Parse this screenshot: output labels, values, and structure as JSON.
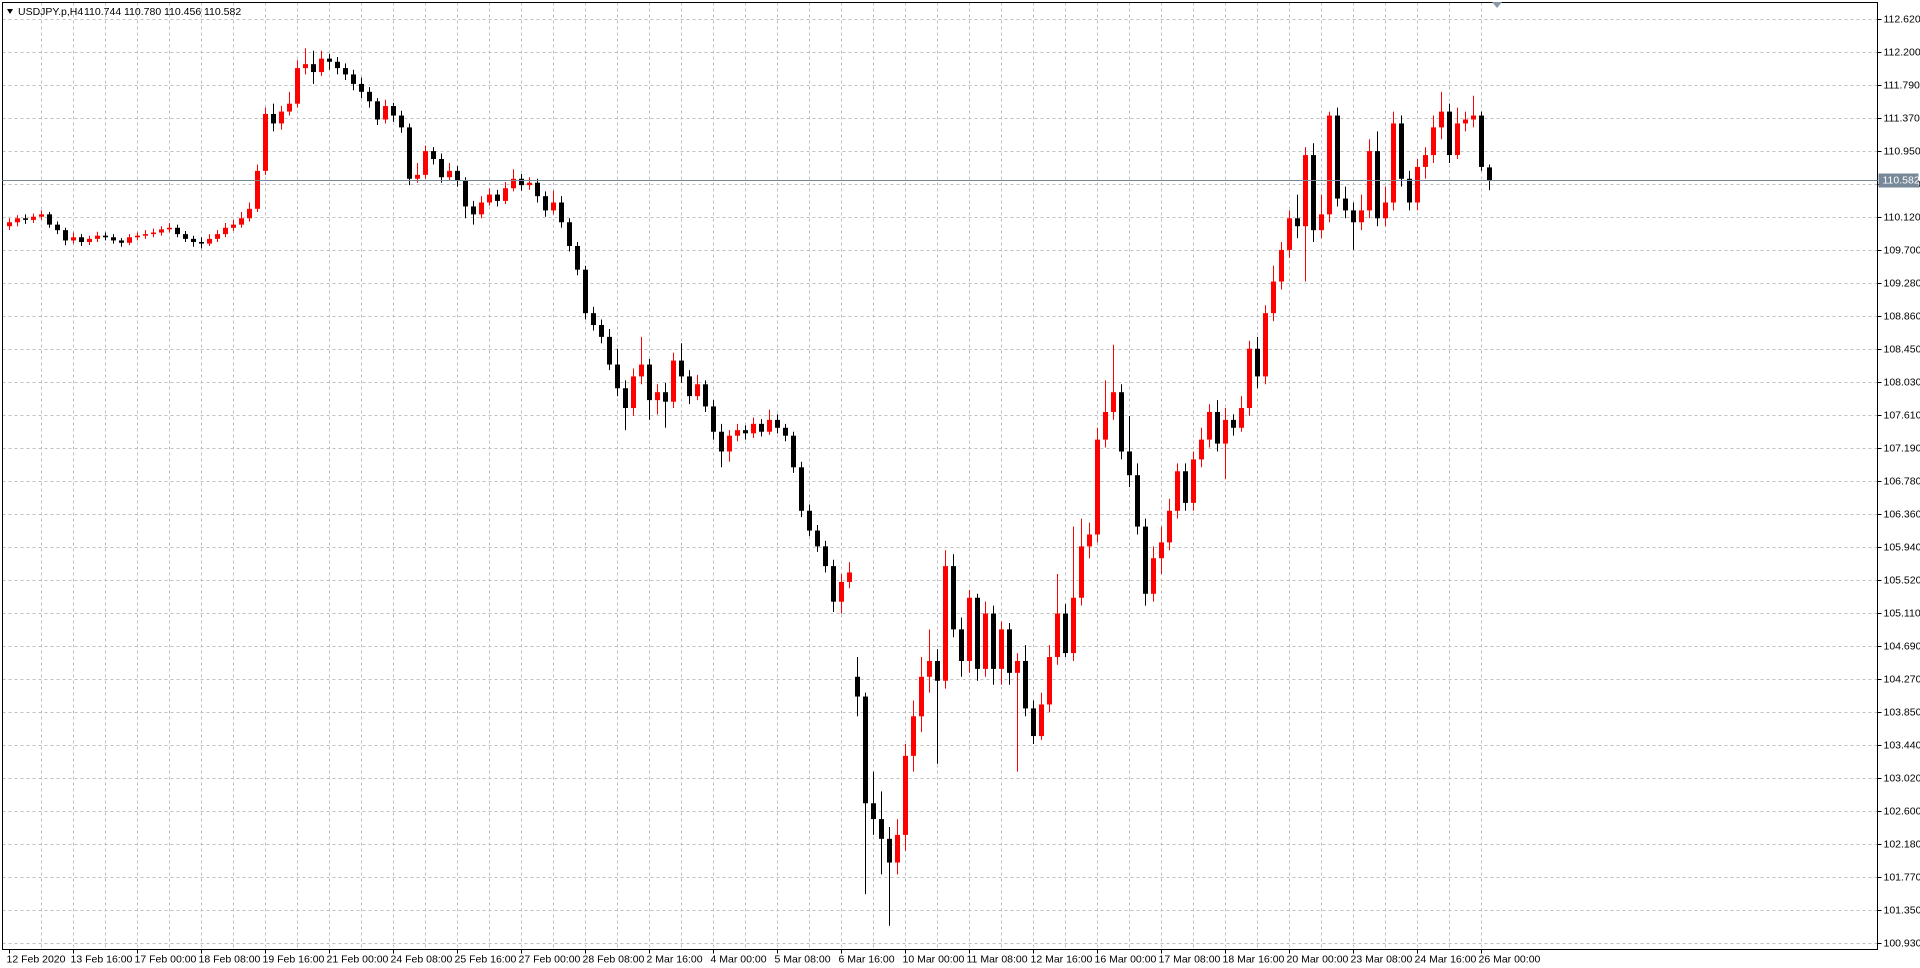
{
  "chart_data": {
    "type": "candlestick",
    "symbol": "USDJPY.p,H4",
    "last_bar_labels": [
      "110.744",
      "110.780",
      "110.456",
      "110.582"
    ],
    "bull_color": "#ff0000",
    "bear_color": "#000000",
    "grid": true,
    "ylim": [
      100.85,
      112.83
    ],
    "yticks": [
      {
        "value": 112.62,
        "label": "112.620"
      },
      {
        "value": 112.2,
        "label": "112.200"
      },
      {
        "value": 111.79,
        "label": "111.790"
      },
      {
        "value": 111.37,
        "label": "111.370"
      },
      {
        "value": 110.95,
        "label": "110.950"
      },
      {
        "value": 110.53,
        "label": "110.530"
      },
      {
        "value": 110.12,
        "label": "110.120"
      },
      {
        "value": 109.7,
        "label": "109.700"
      },
      {
        "value": 109.28,
        "label": "109.280"
      },
      {
        "value": 108.86,
        "label": "108.860"
      },
      {
        "value": 108.45,
        "label": "108.450"
      },
      {
        "value": 108.03,
        "label": "108.030"
      },
      {
        "value": 107.61,
        "label": "107.610"
      },
      {
        "value": 107.19,
        "label": "107.190"
      },
      {
        "value": 106.78,
        "label": "106.780"
      },
      {
        "value": 106.36,
        "label": "106.360"
      },
      {
        "value": 105.94,
        "label": "105.940"
      },
      {
        "value": 105.52,
        "label": "105.520"
      },
      {
        "value": 105.11,
        "label": "105.110"
      },
      {
        "value": 104.69,
        "label": "104.690"
      },
      {
        "value": 104.27,
        "label": "104.270"
      },
      {
        "value": 103.85,
        "label": "103.850"
      },
      {
        "value": 103.44,
        "label": "103.440"
      },
      {
        "value": 103.02,
        "label": "103.020"
      },
      {
        "value": 102.6,
        "label": "102.600"
      },
      {
        "value": 102.18,
        "label": "102.180"
      },
      {
        "value": 101.77,
        "label": "101.770"
      },
      {
        "value": 101.35,
        "label": "101.350"
      },
      {
        "value": 100.93,
        "label": "100.930"
      }
    ],
    "bid": {
      "value": 110.582,
      "label": "110.582"
    },
    "bid_color": "#778899",
    "categories": [
      "12 Feb 2020",
      null,
      null,
      null,
      null,
      null,
      null,
      null,
      "13 Feb 16:00",
      null,
      null,
      null,
      null,
      null,
      null,
      null,
      "17 Feb 00:00",
      null,
      null,
      null,
      null,
      null,
      null,
      null,
      "18 Feb 08:00",
      null,
      null,
      null,
      null,
      null,
      null,
      null,
      "19 Feb 16:00",
      null,
      null,
      null,
      null,
      null,
      null,
      null,
      "21 Feb 00:00",
      null,
      null,
      null,
      null,
      null,
      null,
      null,
      "24 Feb 08:00",
      null,
      null,
      null,
      null,
      null,
      null,
      null,
      "25 Feb 16:00",
      null,
      null,
      null,
      null,
      null,
      null,
      null,
      "27 Feb 00:00",
      null,
      null,
      null,
      null,
      null,
      null,
      null,
      "28 Feb 08:00",
      null,
      null,
      null,
      null,
      null,
      null,
      null,
      "2 Mar 16:00",
      null,
      null,
      null,
      null,
      null,
      null,
      null,
      "4 Mar 00:00",
      null,
      null,
      null,
      null,
      null,
      null,
      null,
      "5 Mar 08:00",
      null,
      null,
      null,
      null,
      null,
      null,
      null,
      "6 Mar 16:00",
      null,
      null,
      null,
      null,
      null,
      null,
      null,
      "10 Mar 00:00",
      null,
      null,
      null,
      null,
      null,
      null,
      null,
      "11 Mar 08:00",
      null,
      null,
      null,
      null,
      null,
      null,
      null,
      "12 Mar 16:00",
      null,
      null,
      null,
      null,
      null,
      null,
      null,
      "16 Mar 00:00",
      null,
      null,
      null,
      null,
      null,
      null,
      null,
      "17 Mar 08:00",
      null,
      null,
      null,
      null,
      null,
      null,
      null,
      "18 Mar 16:00",
      null,
      null,
      null,
      null,
      null,
      null,
      null,
      "20 Mar 00:00",
      null,
      null,
      null,
      null,
      null,
      null,
      null,
      "23 Mar 08:00",
      null,
      null,
      null,
      null,
      null,
      null,
      null,
      "24 Mar 16:00",
      null,
      null,
      null,
      null,
      null,
      null,
      null,
      "26 Mar 00:00",
      null
    ],
    "ohlc": [
      [
        110.0,
        110.1,
        109.95,
        110.05
      ],
      [
        110.05,
        110.14,
        110.0,
        110.1
      ],
      [
        110.1,
        110.15,
        110.03,
        110.08
      ],
      [
        110.08,
        110.16,
        110.04,
        110.12
      ],
      [
        110.12,
        110.2,
        110.08,
        110.15
      ],
      [
        110.15,
        110.18,
        109.98,
        110.02
      ],
      [
        110.02,
        110.06,
        109.9,
        109.95
      ],
      [
        109.95,
        109.98,
        109.76,
        109.82
      ],
      [
        109.82,
        109.92,
        109.78,
        109.86
      ],
      [
        109.86,
        109.9,
        109.75,
        109.8
      ],
      [
        109.8,
        109.88,
        109.76,
        109.84
      ],
      [
        109.84,
        109.93,
        109.8,
        109.88
      ],
      [
        109.88,
        109.92,
        109.82,
        109.86
      ],
      [
        109.86,
        109.9,
        109.78,
        109.82
      ],
      [
        109.82,
        109.85,
        109.74,
        109.79
      ],
      [
        109.79,
        109.9,
        109.76,
        109.86
      ],
      [
        109.86,
        109.92,
        109.82,
        109.88
      ],
      [
        109.88,
        109.95,
        109.84,
        109.9
      ],
      [
        109.9,
        109.97,
        109.86,
        109.92
      ],
      [
        109.92,
        110.0,
        109.88,
        109.96
      ],
      [
        109.96,
        110.04,
        109.92,
        109.98
      ],
      [
        109.98,
        110.02,
        109.86,
        109.9
      ],
      [
        109.9,
        109.94,
        109.8,
        109.84
      ],
      [
        109.84,
        109.88,
        109.74,
        109.8
      ],
      [
        109.8,
        109.86,
        109.72,
        109.78
      ],
      [
        109.78,
        109.9,
        109.75,
        109.84
      ],
      [
        109.84,
        109.95,
        109.8,
        109.9
      ],
      [
        109.9,
        110.04,
        109.86,
        109.98
      ],
      [
        109.98,
        110.08,
        109.94,
        110.02
      ],
      [
        110.02,
        110.18,
        109.98,
        110.1
      ],
      [
        110.1,
        110.3,
        110.06,
        110.22
      ],
      [
        110.22,
        110.78,
        110.18,
        110.7
      ],
      [
        110.7,
        111.5,
        110.65,
        111.42
      ],
      [
        111.42,
        111.55,
        111.2,
        111.3
      ],
      [
        111.3,
        111.52,
        111.22,
        111.45
      ],
      [
        111.45,
        111.7,
        111.4,
        111.55
      ],
      [
        111.55,
        112.1,
        111.5,
        112.0
      ],
      [
        112.0,
        112.25,
        111.92,
        112.05
      ],
      [
        112.05,
        112.22,
        111.8,
        111.95
      ],
      [
        111.95,
        112.22,
        111.9,
        112.12
      ],
      [
        112.12,
        112.18,
        111.98,
        112.08
      ],
      [
        112.08,
        112.14,
        111.92,
        112.0
      ],
      [
        112.0,
        112.06,
        111.85,
        111.92
      ],
      [
        111.92,
        111.98,
        111.72,
        111.8
      ],
      [
        111.8,
        111.88,
        111.62,
        111.7
      ],
      [
        111.7,
        111.76,
        111.5,
        111.58
      ],
      [
        111.58,
        111.62,
        111.28,
        111.35
      ],
      [
        111.35,
        111.6,
        111.3,
        111.52
      ],
      [
        111.52,
        111.56,
        111.32,
        111.4
      ],
      [
        111.4,
        111.46,
        111.18,
        111.25
      ],
      [
        111.25,
        111.3,
        110.52,
        110.6
      ],
      [
        110.6,
        110.8,
        110.55,
        110.65
      ],
      [
        110.65,
        111.02,
        110.6,
        110.95
      ],
      [
        110.95,
        111.0,
        110.78,
        110.85
      ],
      [
        110.85,
        110.92,
        110.55,
        110.62
      ],
      [
        110.62,
        110.8,
        110.58,
        110.7
      ],
      [
        110.7,
        110.76,
        110.5,
        110.58
      ],
      [
        110.58,
        110.62,
        110.1,
        110.25
      ],
      [
        110.25,
        110.32,
        110.02,
        110.15
      ],
      [
        110.15,
        110.38,
        110.1,
        110.3
      ],
      [
        110.3,
        110.48,
        110.26,
        110.4
      ],
      [
        110.4,
        110.46,
        110.25,
        110.32
      ],
      [
        110.32,
        110.56,
        110.28,
        110.48
      ],
      [
        110.48,
        110.72,
        110.44,
        110.6
      ],
      [
        110.6,
        110.66,
        110.45,
        110.52
      ],
      [
        110.52,
        110.62,
        110.46,
        110.55
      ],
      [
        110.55,
        110.6,
        110.3,
        110.38
      ],
      [
        110.38,
        110.44,
        110.12,
        110.2
      ],
      [
        110.2,
        110.45,
        110.15,
        110.3
      ],
      [
        110.3,
        110.38,
        109.98,
        110.05
      ],
      [
        110.05,
        110.1,
        109.68,
        109.75
      ],
      [
        109.75,
        109.8,
        109.38,
        109.45
      ],
      [
        109.45,
        109.5,
        108.82,
        108.9
      ],
      [
        108.9,
        108.98,
        108.68,
        108.75
      ],
      [
        108.75,
        108.82,
        108.52,
        108.6
      ],
      [
        108.6,
        108.7,
        108.18,
        108.25
      ],
      [
        108.25,
        108.45,
        107.85,
        107.95
      ],
      [
        107.95,
        108.05,
        107.42,
        107.7
      ],
      [
        107.7,
        108.2,
        107.6,
        108.1
      ],
      [
        108.1,
        108.6,
        108.0,
        108.25
      ],
      [
        108.25,
        108.32,
        107.55,
        107.8
      ],
      [
        107.8,
        108.0,
        107.62,
        107.9
      ],
      [
        107.9,
        108.02,
        107.45,
        107.78
      ],
      [
        107.78,
        108.4,
        107.7,
        108.3
      ],
      [
        108.3,
        108.52,
        108.02,
        108.1
      ],
      [
        108.1,
        108.18,
        107.75,
        107.85
      ],
      [
        107.85,
        108.12,
        107.8,
        108.0
      ],
      [
        108.0,
        108.05,
        107.65,
        107.72
      ],
      [
        107.72,
        107.8,
        107.3,
        107.4
      ],
      [
        107.4,
        107.5,
        106.95,
        107.15
      ],
      [
        107.15,
        107.42,
        107.02,
        107.35
      ],
      [
        107.35,
        107.5,
        107.28,
        107.42
      ],
      [
        107.42,
        107.48,
        107.3,
        107.38
      ],
      [
        107.38,
        107.58,
        107.32,
        107.5
      ],
      [
        107.5,
        107.56,
        107.34,
        107.4
      ],
      [
        107.4,
        107.68,
        107.36,
        107.55
      ],
      [
        107.55,
        107.62,
        107.38,
        107.45
      ],
      [
        107.45,
        107.5,
        107.28,
        107.35
      ],
      [
        107.35,
        107.4,
        106.88,
        106.95
      ],
      [
        106.95,
        107.02,
        106.32,
        106.4
      ],
      [
        106.4,
        106.48,
        106.08,
        106.15
      ],
      [
        106.15,
        106.22,
        105.88,
        105.95
      ],
      [
        105.95,
        106.02,
        105.62,
        105.7
      ],
      [
        105.7,
        105.78,
        105.12,
        105.25
      ],
      [
        105.25,
        105.6,
        105.1,
        105.5
      ],
      [
        105.5,
        105.75,
        105.42,
        105.62
      ],
      [
        104.3,
        104.55,
        103.8,
        104.05
      ],
      [
        104.05,
        104.1,
        101.55,
        102.7
      ],
      [
        102.7,
        103.1,
        102.3,
        102.5
      ],
      [
        102.5,
        102.85,
        101.8,
        102.25
      ],
      [
        102.25,
        102.4,
        101.15,
        101.95
      ],
      [
        101.95,
        102.5,
        101.8,
        102.3
      ],
      [
        102.3,
        103.45,
        102.1,
        103.3
      ],
      [
        103.3,
        104.0,
        103.1,
        103.8
      ],
      [
        103.8,
        104.55,
        103.6,
        104.3
      ],
      [
        104.3,
        104.9,
        104.1,
        104.5
      ],
      [
        104.5,
        104.65,
        103.2,
        104.25
      ],
      [
        104.25,
        105.9,
        104.15,
        105.7
      ],
      [
        105.7,
        105.85,
        104.8,
        104.9
      ],
      [
        104.9,
        105.05,
        104.3,
        104.5
      ],
      [
        104.5,
        105.4,
        104.35,
        105.3
      ],
      [
        105.3,
        105.35,
        104.25,
        104.4
      ],
      [
        104.4,
        105.25,
        104.3,
        105.1
      ],
      [
        105.1,
        105.2,
        104.2,
        104.4
      ],
      [
        104.4,
        105.0,
        104.2,
        104.9
      ],
      [
        104.9,
        104.98,
        104.2,
        104.35
      ],
      [
        104.35,
        104.6,
        103.1,
        104.5
      ],
      [
        104.5,
        104.7,
        103.8,
        103.9
      ],
      [
        103.9,
        104.0,
        103.45,
        103.55
      ],
      [
        103.55,
        104.1,
        103.5,
        103.95
      ],
      [
        103.95,
        104.7,
        103.85,
        104.55
      ],
      [
        104.55,
        105.6,
        104.45,
        105.1
      ],
      [
        105.1,
        105.22,
        104.55,
        104.6
      ],
      [
        104.6,
        106.2,
        104.5,
        105.3
      ],
      [
        105.3,
        106.3,
        105.2,
        105.95
      ],
      [
        105.95,
        106.25,
        105.8,
        106.1
      ],
      [
        106.1,
        107.45,
        106.0,
        107.3
      ],
      [
        107.3,
        108.05,
        107.2,
        107.65
      ],
      [
        107.65,
        108.5,
        107.55,
        107.9
      ],
      [
        107.9,
        108.0,
        107.05,
        107.15
      ],
      [
        107.15,
        107.6,
        106.7,
        106.85
      ],
      [
        106.85,
        107.0,
        106.1,
        106.2
      ],
      [
        106.2,
        106.3,
        105.2,
        105.35
      ],
      [
        105.35,
        105.95,
        105.25,
        105.8
      ],
      [
        105.8,
        106.2,
        105.6,
        106.0
      ],
      [
        106.0,
        106.55,
        105.9,
        106.4
      ],
      [
        106.4,
        107.0,
        106.3,
        106.9
      ],
      [
        106.9,
        107.0,
        106.4,
        106.5
      ],
      [
        106.5,
        107.15,
        106.4,
        107.05
      ],
      [
        107.05,
        107.45,
        106.95,
        107.3
      ],
      [
        107.3,
        107.75,
        107.2,
        107.65
      ],
      [
        107.65,
        107.8,
        107.15,
        107.25
      ],
      [
        107.25,
        107.7,
        106.8,
        107.55
      ],
      [
        107.55,
        107.62,
        107.35,
        107.45
      ],
      [
        107.45,
        107.85,
        107.4,
        107.7
      ],
      [
        107.7,
        108.55,
        107.6,
        108.45
      ],
      [
        108.45,
        108.6,
        107.95,
        108.1
      ],
      [
        108.1,
        109.0,
        108.0,
        108.9
      ],
      [
        108.9,
        109.5,
        108.8,
        109.3
      ],
      [
        109.3,
        109.8,
        109.2,
        109.7
      ],
      [
        109.7,
        110.2,
        109.6,
        110.1
      ],
      [
        110.1,
        110.4,
        109.85,
        110.0
      ],
      [
        110.0,
        111.0,
        109.3,
        110.9
      ],
      [
        110.9,
        111.05,
        109.8,
        109.95
      ],
      [
        109.95,
        110.4,
        109.85,
        110.15
      ],
      [
        110.15,
        111.45,
        110.05,
        111.4
      ],
      [
        111.4,
        111.5,
        110.25,
        110.35
      ],
      [
        110.35,
        110.5,
        110.1,
        110.2
      ],
      [
        110.2,
        110.3,
        109.7,
        110.05
      ],
      [
        110.05,
        110.4,
        109.95,
        110.2
      ],
      [
        110.2,
        111.1,
        110.1,
        110.95
      ],
      [
        110.95,
        111.2,
        110.0,
        110.1
      ],
      [
        110.1,
        110.5,
        110.0,
        110.3
      ],
      [
        110.3,
        111.45,
        110.2,
        111.3
      ],
      [
        111.3,
        111.4,
        110.5,
        110.6
      ],
      [
        110.6,
        110.7,
        110.2,
        110.3
      ],
      [
        110.3,
        110.85,
        110.2,
        110.75
      ],
      [
        110.75,
        111.0,
        110.6,
        110.9
      ],
      [
        110.9,
        111.4,
        110.8,
        111.25
      ],
      [
        111.25,
        111.7,
        111.1,
        111.45
      ],
      [
        111.45,
        111.55,
        110.8,
        110.9
      ],
      [
        110.9,
        111.5,
        110.85,
        111.3
      ],
      [
        111.3,
        111.45,
        111.2,
        111.35
      ],
      [
        111.35,
        111.65,
        111.25,
        111.4
      ],
      [
        111.4,
        111.45,
        110.7,
        110.75
      ],
      [
        110.744,
        110.78,
        110.456,
        110.582
      ]
    ]
  }
}
